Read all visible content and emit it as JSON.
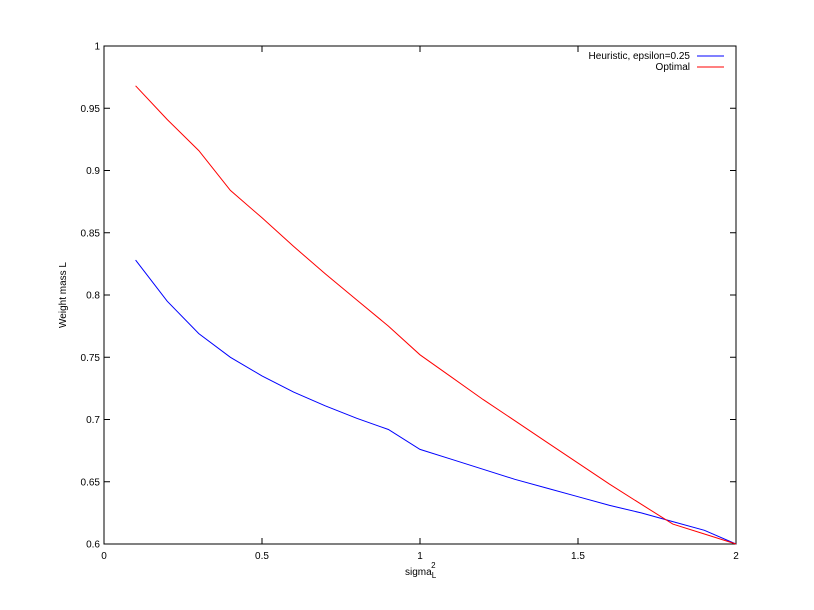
{
  "chart_data": {
    "type": "line",
    "xlabel_main": "sigma",
    "xlabel_sup": "2",
    "xlabel_sub": "L",
    "ylabel": "Weight mass L",
    "xlim": [
      0,
      2
    ],
    "ylim": [
      0.6,
      1
    ],
    "xticks": [
      "0",
      "0.5",
      "1",
      "1.5",
      "2"
    ],
    "xtick_values": [
      0,
      0.5,
      1,
      1.5,
      2
    ],
    "yticks": [
      "0.6",
      "0.65",
      "0.7",
      "0.75",
      "0.8",
      "0.85",
      "0.9",
      "0.95",
      "1"
    ],
    "ytick_values": [
      0.6,
      0.65,
      0.7,
      0.75,
      0.8,
      0.85,
      0.9,
      0.95,
      1
    ],
    "grid": false,
    "legend_position": "top-right",
    "series": [
      {
        "name": "Heuristic, epsilon=0.25",
        "color": "#0000ff",
        "x": [
          0.1,
          0.2,
          0.3,
          0.4,
          0.5,
          0.6,
          0.7,
          0.8,
          0.9,
          1.0,
          1.1,
          1.2,
          1.3,
          1.4,
          1.5,
          1.6,
          1.7,
          1.8,
          1.9,
          2.0
        ],
        "y": [
          0.828,
          0.795,
          0.769,
          0.75,
          0.735,
          0.722,
          0.711,
          0.701,
          0.692,
          0.676,
          0.668,
          0.66,
          0.652,
          0.645,
          0.638,
          0.631,
          0.625,
          0.618,
          0.611,
          0.6
        ]
      },
      {
        "name": "Optimal",
        "color": "#ff0000",
        "x": [
          0.1,
          0.2,
          0.3,
          0.4,
          0.5,
          0.6,
          0.7,
          0.8,
          0.9,
          1.0,
          1.1,
          1.2,
          1.3,
          1.4,
          1.5,
          1.6,
          1.7,
          1.8,
          1.9,
          2.0
        ],
        "y": [
          0.968,
          0.941,
          0.916,
          0.884,
          0.862,
          0.839,
          0.817,
          0.796,
          0.775,
          0.752,
          0.734,
          0.716,
          0.699,
          0.682,
          0.665,
          0.648,
          0.632,
          0.616,
          0.608,
          0.6
        ]
      }
    ]
  }
}
